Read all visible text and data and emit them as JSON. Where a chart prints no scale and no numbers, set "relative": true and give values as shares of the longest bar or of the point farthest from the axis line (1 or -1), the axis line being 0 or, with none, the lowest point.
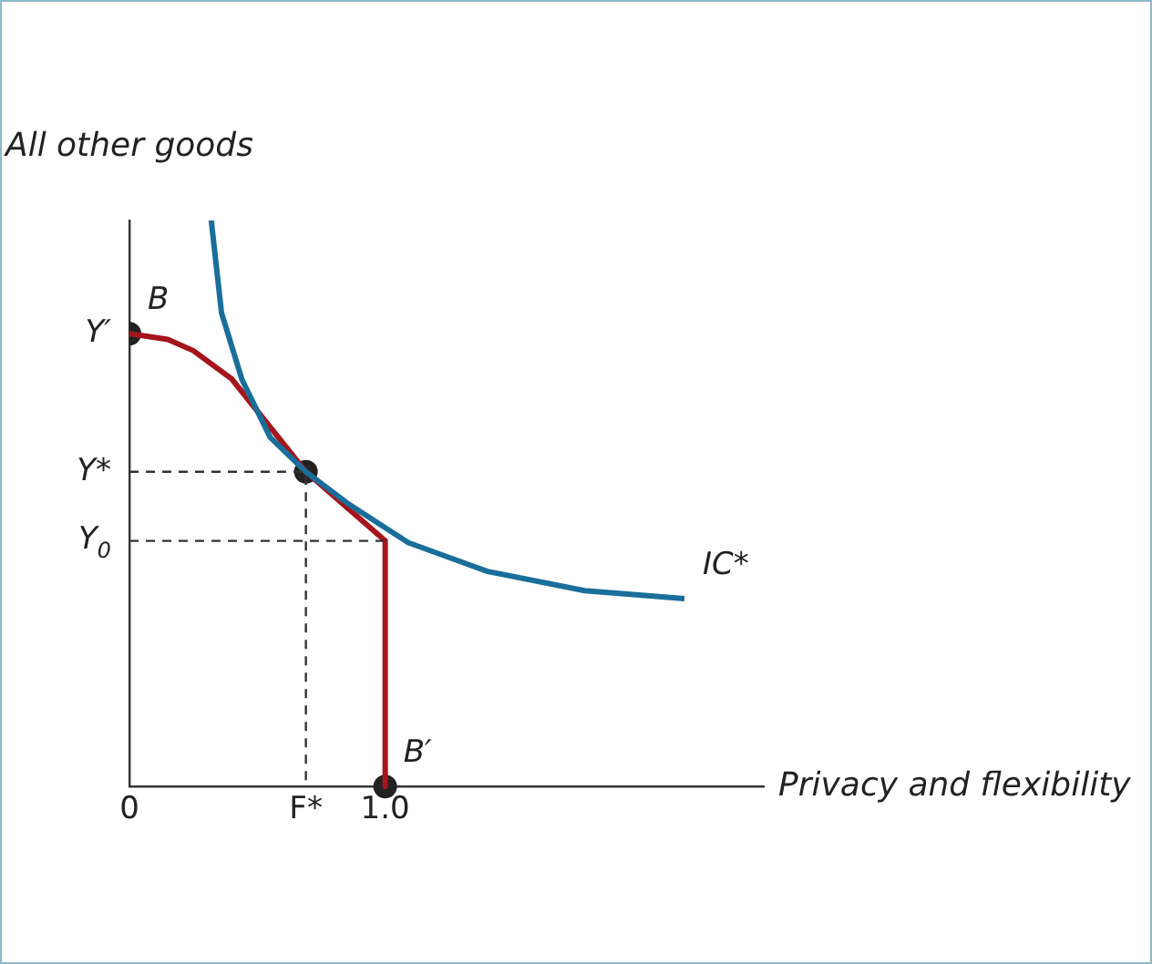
{
  "chart_data": {
    "type": "line",
    "relative": true,
    "xlabel": "Privacy and flexibility",
    "ylabel": "All other goods",
    "xlim": [
      0,
      2.48
    ],
    "xticks": [
      0,
      {
        "value": 0.69,
        "label": "F*"
      },
      {
        "value": 1,
        "label": "1.0"
      }
    ],
    "grid": false,
    "legend": false,
    "series": [
      {
        "line_style": "dashed",
        "color": "#333333",
        "x": [
          0,
          0.69,
          0.69
        ],
        "values": [
          0.556,
          0.556,
          0
        ]
      },
      {
        "line_style": "dashed",
        "color": "#333333",
        "x": [
          0,
          1
        ],
        "values": [
          0.434,
          0.434
        ]
      },
      {
        "line_style": "solid",
        "color": "#1a6e9a",
        "x": [
          0.32,
          0.36,
          0.44,
          0.55,
          0.69,
          0.86,
          1.09,
          1.4,
          1.78,
          2.17
        ],
        "values": [
          1.0,
          0.837,
          0.719,
          0.617,
          0.556,
          0.498,
          0.431,
          0.38,
          0.346,
          0.332
        ]
      },
      {
        "line_style": "solid",
        "color": "#a6141c",
        "x": [
          0,
          0.15,
          0.25,
          0.4,
          0.69,
          1,
          1
        ],
        "values": [
          0.8,
          0.79,
          0.77,
          0.72,
          0.556,
          0.434,
          0
        ]
      },
      {
        "type": "scatter",
        "color": "#222222",
        "x": [
          0,
          0.69,
          1
        ],
        "values": [
          0.8,
          0.556,
          0
        ]
      }
    ],
    "annotations": [
      {
        "text": "Y′",
        "x": 0,
        "y": 0.8
      },
      {
        "text": "Y*",
        "x": 0,
        "y": 0.556
      },
      {
        "text": "Y$_{0}$",
        "x": 0,
        "y": 0.434
      },
      {
        "text": "B",
        "x": 0,
        "y": 0.8
      },
      {
        "text": "B′",
        "x": 1,
        "y": 0
      },
      {
        "text": "IC*",
        "x": 2.17,
        "y": 0.332
      }
    ]
  }
}
